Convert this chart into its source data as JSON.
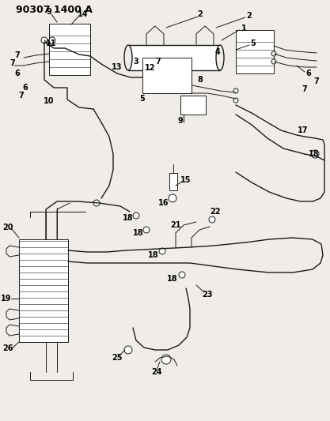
{
  "title": "90307 1400 A",
  "title_fontsize": 9,
  "title_fontweight": "bold",
  "bg_color": "#f0ede8",
  "line_color": "#1a1a1a",
  "label_color": "#000000",
  "label_fontsize": 7,
  "fig_width": 4.17,
  "fig_height": 5.33,
  "dpi": 100
}
